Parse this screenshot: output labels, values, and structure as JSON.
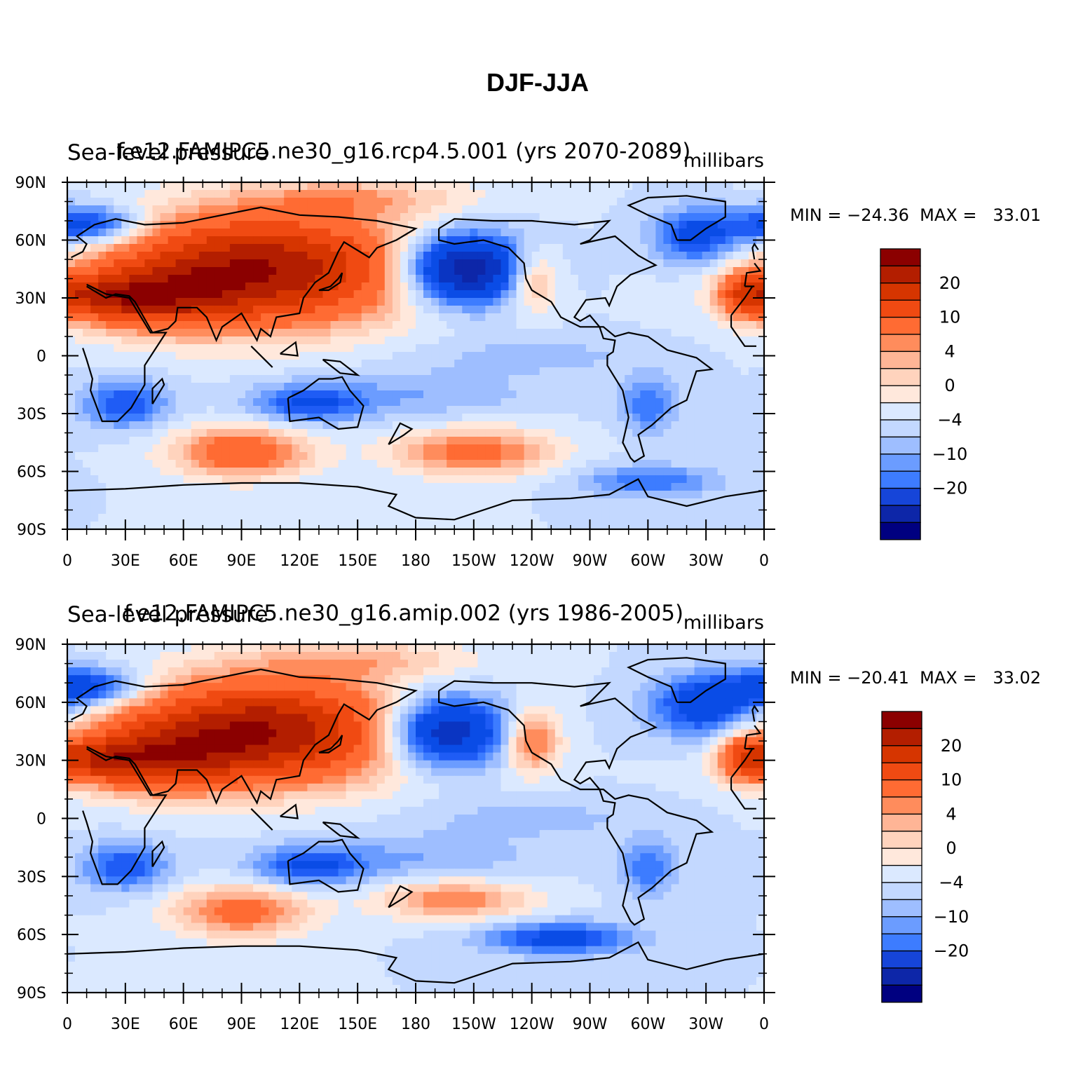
{
  "figure_title": "DJF-JJA",
  "colors": {
    "levels": [
      "#000080",
      "#0d26a8",
      "#0a35c2",
      "#0a4ce6",
      "#1f5cf5",
      "#3d7cff",
      "#6b9cff",
      "#9ebeff",
      "#c3d8ff",
      "#dbe9ff",
      "#ffe8dc",
      "#ffd3bd",
      "#ffb596",
      "#ff8c5c",
      "#ff6b33",
      "#f04a12",
      "#d63500",
      "#b31e00",
      "#8b0000"
    ],
    "coast": "#000000"
  },
  "chart_data": [
    {
      "type": "heatmap",
      "title_left": "Sea-level pressure",
      "title_center": "f.e12.FAMIPC5.ne30_g16.rcp4.5.001 (yrs 2070-2089)",
      "units": "millibars",
      "stats": "MIN = −24.36  MAX =   33.01",
      "min": -24.36,
      "max": 33.01,
      "lat_ticks": [
        "90N",
        "60N",
        "30N",
        "0",
        "30S",
        "60S",
        "90S"
      ],
      "lon_ticks": [
        "0",
        "30E",
        "60E",
        "90E",
        "120E",
        "150E",
        "180",
        "150W",
        "120W",
        "90W",
        "60W",
        "30W",
        "0"
      ],
      "colorbar_labels": [
        "20",
        "10",
        "4",
        "0",
        "−4",
        "−10",
        "−20"
      ],
      "anomalies": [
        {
          "lon": 100,
          "lat": 45,
          "rlon": 75,
          "rlat": 28,
          "v": 30
        },
        {
          "lon": 45,
          "lat": 30,
          "rlon": 40,
          "rlat": 16,
          "v": 16
        },
        {
          "lon": 15,
          "lat": 30,
          "rlon": 25,
          "rlat": 10,
          "v": 12
        },
        {
          "lon": 150,
          "lat": 82,
          "rlon": 60,
          "rlat": 10,
          "v": 6
        },
        {
          "lon": 240,
          "lat": 40,
          "rlon": 14,
          "rlat": 16,
          "v": 10
        },
        {
          "lon": 350,
          "lat": 32,
          "rlon": 14,
          "rlat": 12,
          "v": 14
        },
        {
          "lon": 205,
          "lat": 45,
          "rlon": 32,
          "rlat": 18,
          "v": -26
        },
        {
          "lon": 10,
          "lat": 68,
          "rlon": 28,
          "rlat": 10,
          "v": -14
        },
        {
          "lon": 325,
          "lat": 62,
          "rlon": 22,
          "rlat": 14,
          "v": -12
        },
        {
          "lon": 30,
          "lat": -25,
          "rlon": 22,
          "rlat": 12,
          "v": -10
        },
        {
          "lon": 125,
          "lat": -25,
          "rlon": 28,
          "rlat": 10,
          "v": -10
        },
        {
          "lon": 300,
          "lat": -25,
          "rlon": 14,
          "rlat": 14,
          "v": -8
        },
        {
          "lon": 90,
          "lat": -50,
          "rlon": 35,
          "rlat": 13,
          "v": 14
        },
        {
          "lon": 210,
          "lat": -50,
          "rlon": 40,
          "rlat": 12,
          "v": 12
        },
        {
          "lon": 300,
          "lat": -65,
          "rlon": 35,
          "rlat": 8,
          "v": -8
        },
        {
          "lon": 180,
          "lat": -20,
          "rlon": 60,
          "rlat": 12,
          "v": -4
        },
        {
          "lon": 240,
          "lat": 0,
          "rlon": 60,
          "rlat": 10,
          "v": -3
        }
      ]
    },
    {
      "type": "heatmap",
      "title_left": "Sea-level pressure",
      "title_center": "f.e12.FAMIPC5.ne30_g16.amip.002 (yrs 1986-2005)",
      "units": "millibars",
      "stats": "MIN = −20.41  MAX =   33.02",
      "min": -20.41,
      "max": 33.02,
      "lat_ticks": [
        "90N",
        "60N",
        "30N",
        "0",
        "30S",
        "60S",
        "90S"
      ],
      "lon_ticks": [
        "0",
        "30E",
        "60E",
        "90E",
        "120E",
        "150E",
        "180",
        "150W",
        "120W",
        "90W",
        "60W",
        "30W",
        "0"
      ],
      "colorbar_labels": [
        "20",
        "10",
        "4",
        "0",
        "−4",
        "−10",
        "−20"
      ],
      "anomalies": [
        {
          "lon": 100,
          "lat": 45,
          "rlon": 72,
          "rlat": 26,
          "v": 30
        },
        {
          "lon": 45,
          "lat": 30,
          "rlon": 40,
          "rlat": 16,
          "v": 16
        },
        {
          "lon": 15,
          "lat": 30,
          "rlon": 25,
          "rlat": 10,
          "v": 12
        },
        {
          "lon": 150,
          "lat": 82,
          "rlon": 60,
          "rlat": 10,
          "v": 6
        },
        {
          "lon": 240,
          "lat": 40,
          "rlon": 14,
          "rlat": 16,
          "v": 12
        },
        {
          "lon": 350,
          "lat": 32,
          "rlon": 14,
          "rlat": 12,
          "v": 14
        },
        {
          "lon": 195,
          "lat": 45,
          "rlon": 32,
          "rlat": 18,
          "v": -22
        },
        {
          "lon": 10,
          "lat": 68,
          "rlon": 28,
          "rlat": 10,
          "v": -14
        },
        {
          "lon": 330,
          "lat": 58,
          "rlon": 28,
          "rlat": 16,
          "v": -14
        },
        {
          "lon": 30,
          "lat": -25,
          "rlon": 22,
          "rlat": 12,
          "v": -10
        },
        {
          "lon": 125,
          "lat": -25,
          "rlon": 28,
          "rlat": 10,
          "v": -10
        },
        {
          "lon": 300,
          "lat": -25,
          "rlon": 14,
          "rlat": 14,
          "v": -8
        },
        {
          "lon": 90,
          "lat": -48,
          "rlon": 35,
          "rlat": 13,
          "v": 12
        },
        {
          "lon": 200,
          "lat": -42,
          "rlon": 38,
          "rlat": 10,
          "v": 10
        },
        {
          "lon": 255,
          "lat": -62,
          "rlon": 38,
          "rlat": 8,
          "v": -12
        },
        {
          "lon": 180,
          "lat": -20,
          "rlon": 60,
          "rlat": 12,
          "v": -4
        },
        {
          "lon": 240,
          "lat": 0,
          "rlon": 60,
          "rlat": 10,
          "v": -3
        }
      ]
    }
  ]
}
